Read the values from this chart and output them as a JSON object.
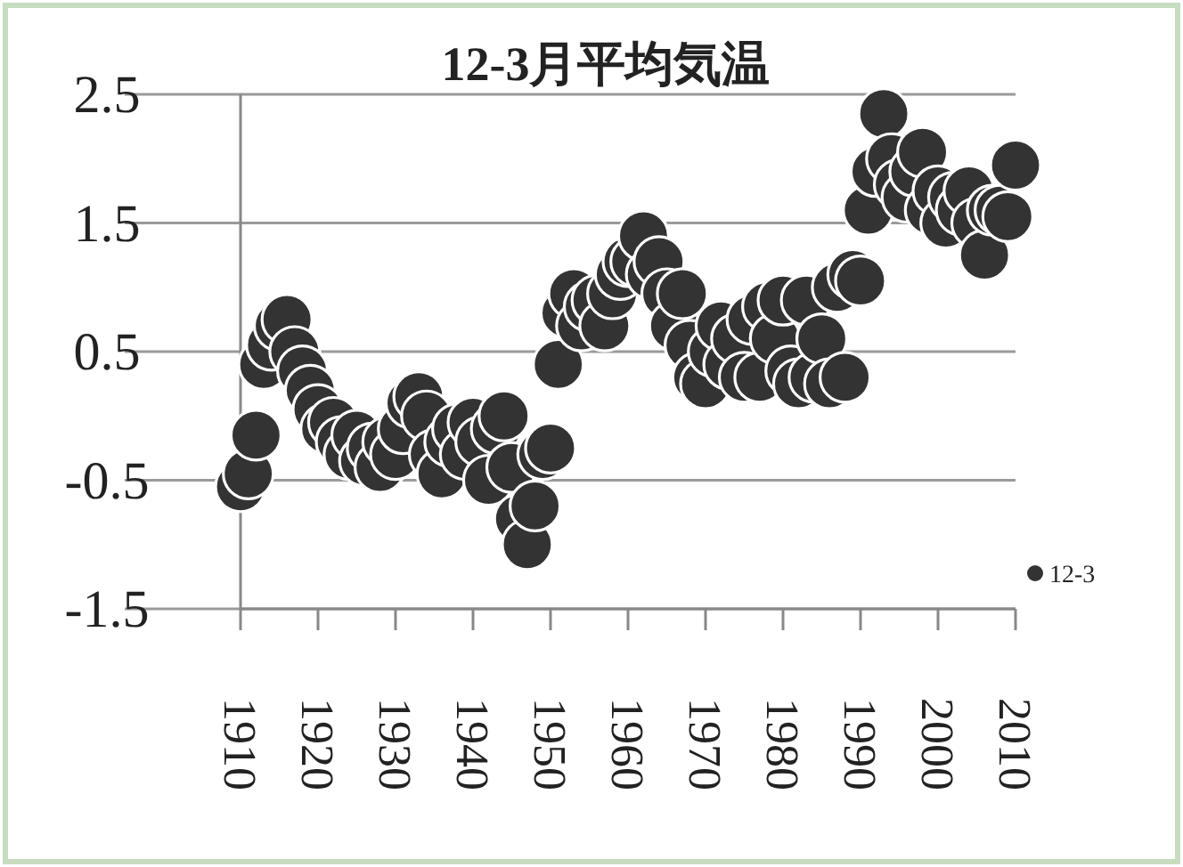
{
  "chart_data": {
    "type": "scatter",
    "title": "12-3月平均気温",
    "x": [
      1910,
      1911,
      1912,
      1913,
      1914,
      1915,
      1916,
      1917,
      1918,
      1919,
      1920,
      1921,
      1922,
      1923,
      1924,
      1925,
      1926,
      1927,
      1928,
      1929,
      1930,
      1931,
      1932,
      1933,
      1934,
      1935,
      1936,
      1937,
      1938,
      1939,
      1940,
      1941,
      1942,
      1943,
      1944,
      1945,
      1946,
      1947,
      1948,
      1949,
      1950,
      1951,
      1952,
      1953,
      1954,
      1955,
      1956,
      1957,
      1958,
      1959,
      1960,
      1961,
      1962,
      1963,
      1964,
      1965,
      1966,
      1967,
      1968,
      1969,
      1970,
      1971,
      1972,
      1973,
      1974,
      1975,
      1976,
      1977,
      1978,
      1979,
      1980,
      1981,
      1982,
      1983,
      1984,
      1985,
      1986,
      1987,
      1988,
      1989,
      1990,
      1991,
      1992,
      1993,
      1994,
      1995,
      1996,
      1997,
      1998,
      1999,
      2000,
      2001,
      2002,
      2003,
      2004,
      2005,
      2006,
      2007,
      2008,
      2009,
      2010
    ],
    "series": [
      {
        "name": "12-3",
        "color": "#333333",
        "values": [
          -0.55,
          -0.45,
          -0.15,
          0.4,
          0.55,
          0.7,
          0.75,
          0.5,
          0.35,
          0.2,
          0.05,
          -0.1,
          -0.05,
          -0.2,
          -0.3,
          -0.15,
          -0.35,
          -0.25,
          -0.4,
          -0.2,
          -0.3,
          -0.1,
          0.1,
          0.15,
          0.0,
          -0.3,
          -0.45,
          -0.2,
          -0.1,
          -0.3,
          -0.05,
          -0.2,
          -0.5,
          -0.1,
          0.0,
          -0.4,
          -0.8,
          -1.0,
          -0.7,
          -0.3,
          -0.25,
          0.4,
          0.8,
          0.95,
          0.7,
          0.85,
          0.9,
          0.7,
          0.95,
          1.1,
          1.2,
          1.2,
          1.4,
          1.1,
          1.2,
          0.95,
          0.7,
          0.95,
          0.55,
          0.3,
          0.25,
          0.5,
          0.7,
          0.4,
          0.6,
          0.3,
          0.75,
          0.3,
          0.85,
          0.6,
          0.9,
          0.35,
          0.25,
          0.9,
          0.3,
          0.6,
          0.25,
          1.0,
          0.3,
          1.1,
          1.05,
          1.6,
          1.9,
          2.35,
          2.0,
          1.8,
          1.7,
          1.9,
          2.05,
          1.6,
          1.75,
          1.5,
          1.7,
          1.6,
          1.75,
          1.5,
          1.25,
          1.6,
          1.6,
          1.55,
          1.95
        ]
      }
    ],
    "xlim": [
      1910,
      2010
    ],
    "xticks": [
      1910,
      1920,
      1930,
      1940,
      1950,
      1960,
      1970,
      1980,
      1990,
      2000,
      2010
    ],
    "ylim": [
      -1.5,
      2.5
    ],
    "yticks": [
      -1.5,
      -0.5,
      0.5,
      1.5,
      2.5
    ],
    "grid": "y",
    "legend": "right",
    "marker": "circle"
  }
}
